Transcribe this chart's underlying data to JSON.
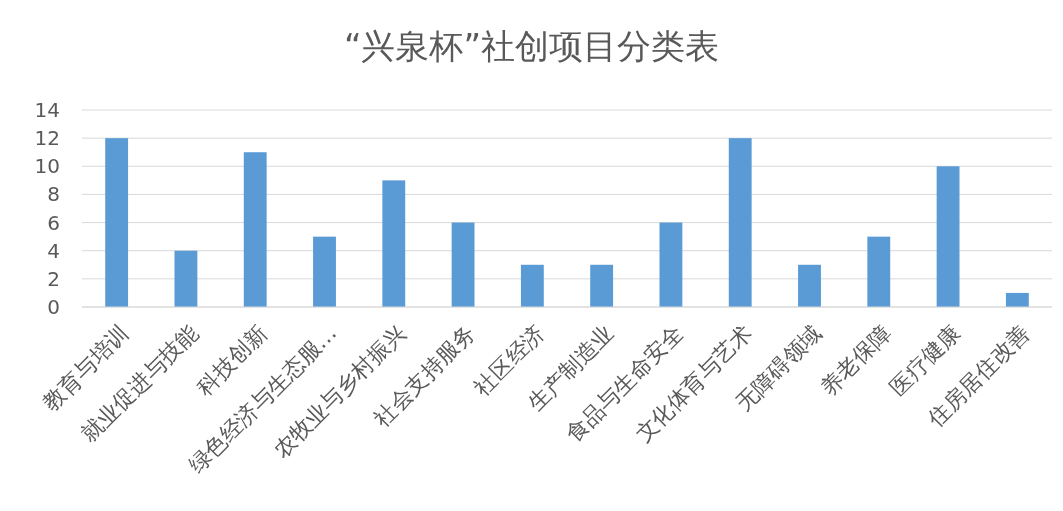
{
  "chart_data": {
    "type": "bar",
    "title": "“兴泉杯”社创项目分类表",
    "categories": [
      "教育与培训",
      "就业促进与技能",
      "科技创新",
      "绿色经济与生态服…",
      "农牧业与乡村振兴",
      "社会支持服务",
      "社区经济",
      "生产制造业",
      "食品与生命安全",
      "文化体育与艺术",
      "无障碍领域",
      "养老保障",
      "医疗健康",
      "住房居住改善"
    ],
    "values": [
      12,
      4,
      11,
      5,
      9,
      6,
      3,
      3,
      6,
      12,
      3,
      5,
      10,
      1
    ],
    "color": "#5b9bd5",
    "ylim": [
      0,
      14
    ],
    "yticks": [
      0,
      2,
      4,
      6,
      8,
      10,
      12,
      14
    ],
    "grid": "y"
  }
}
